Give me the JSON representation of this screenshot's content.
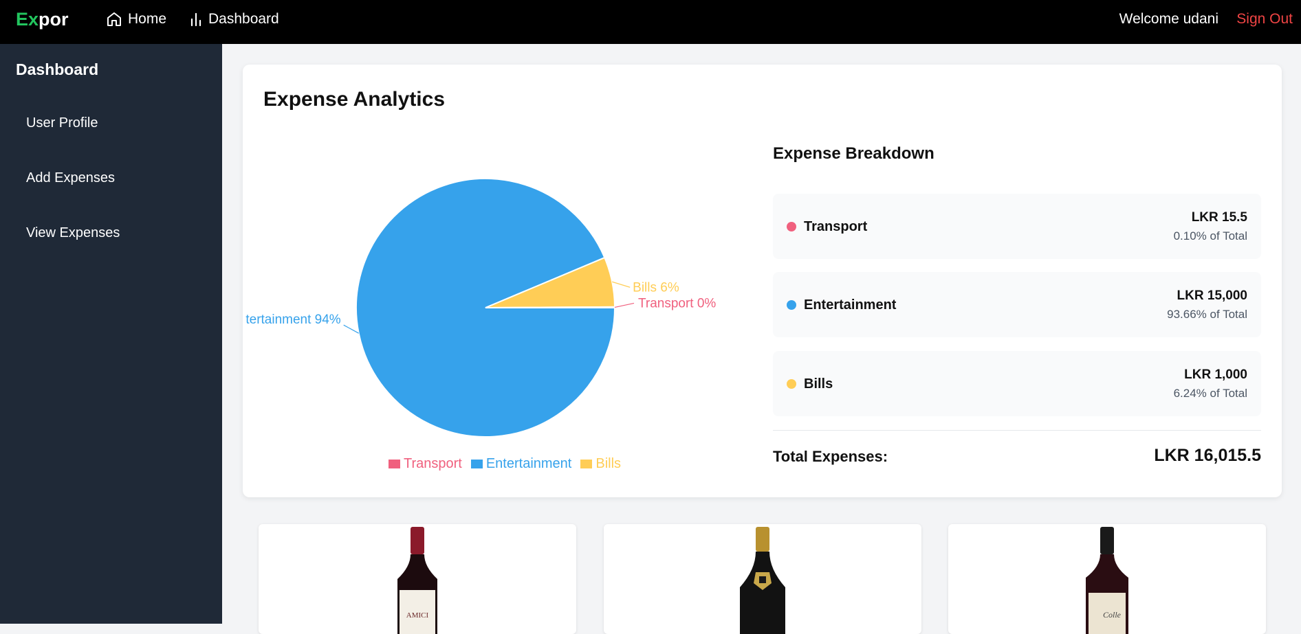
{
  "app": {
    "logo_part1": "Ex",
    "logo_part2": "por"
  },
  "nav": {
    "home_label": "Home",
    "dashboard_label": "Dashboard",
    "welcome_text": "Welcome udani",
    "signout_label": "Sign Out"
  },
  "sidebar": {
    "title": "Dashboard",
    "items": [
      {
        "label": "User Profile"
      },
      {
        "label": "Add Expenses"
      },
      {
        "label": "View Expenses"
      }
    ]
  },
  "analytics": {
    "title": "Expense Analytics",
    "breakdown_title": "Expense Breakdown",
    "items": [
      {
        "name": "Transport",
        "amount": "LKR 15.5",
        "percent": "0.10% of Total",
        "color": "#f0607e"
      },
      {
        "name": "Entertainment",
        "amount": "LKR 15,000",
        "percent": "93.66% of Total",
        "color": "#36a2eb"
      },
      {
        "name": "Bills",
        "amount": "LKR 1,000",
        "percent": "6.24% of Total",
        "color": "#ffcd56"
      }
    ],
    "total_label": "Total Expenses:",
    "total_value": "LKR 16,015.5"
  },
  "chart_data": {
    "type": "pie",
    "categories": [
      "Transport",
      "Entertainment",
      "Bills"
    ],
    "values": [
      15.5,
      15000,
      1000
    ],
    "colors": [
      "#f0607e",
      "#36a2eb",
      "#ffcd56"
    ],
    "slice_labels": [
      "Transport 0%",
      "tertainment 94%",
      "Bills 6%"
    ],
    "legend": [
      "Transport",
      "Entertainment",
      "Bills"
    ],
    "legend_position": "bottom"
  },
  "products": [
    {
      "label": "AMICI"
    },
    {
      "label": ""
    },
    {
      "label": "Colle"
    }
  ]
}
